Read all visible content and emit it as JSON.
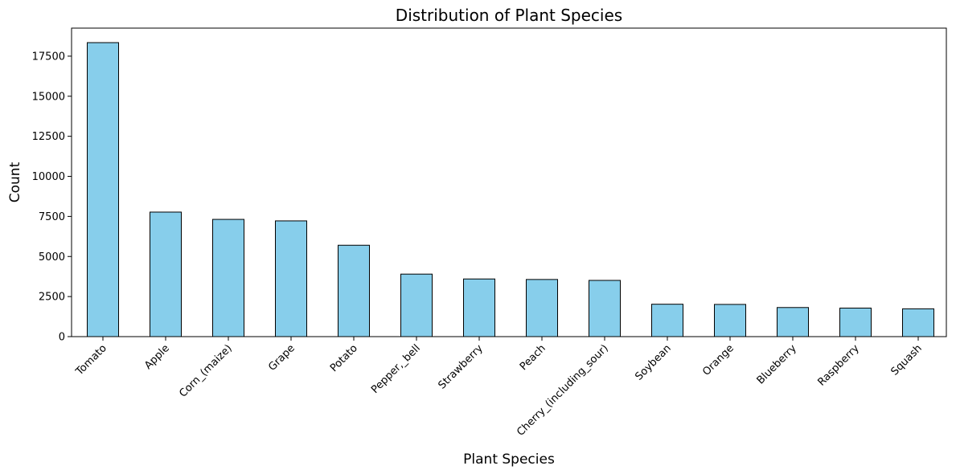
{
  "chart_data": {
    "type": "bar",
    "title": "Distribution of Plant Species",
    "xlabel": "Plant Species",
    "ylabel": "Count",
    "categories": [
      "Tomato",
      "Apple",
      "Corn_(maize)",
      "Grape",
      "Potato",
      "Pepper,_bell",
      "Strawberry",
      "Peach",
      "Cherry_(including_sour)",
      "Soybean",
      "Orange",
      "Blueberry",
      "Raspberry",
      "Squash"
    ],
    "values": [
      18345,
      7771,
      7316,
      7222,
      5702,
      3901,
      3598,
      3566,
      3509,
      2022,
      2010,
      1816,
      1781,
      1736
    ],
    "ylim": [
      0,
      19250
    ],
    "yticks": [
      0,
      2500,
      5000,
      7500,
      10000,
      12500,
      15000,
      17500
    ],
    "grid": false,
    "bar_color": "#87ceeb",
    "edge_color": "#000000"
  }
}
